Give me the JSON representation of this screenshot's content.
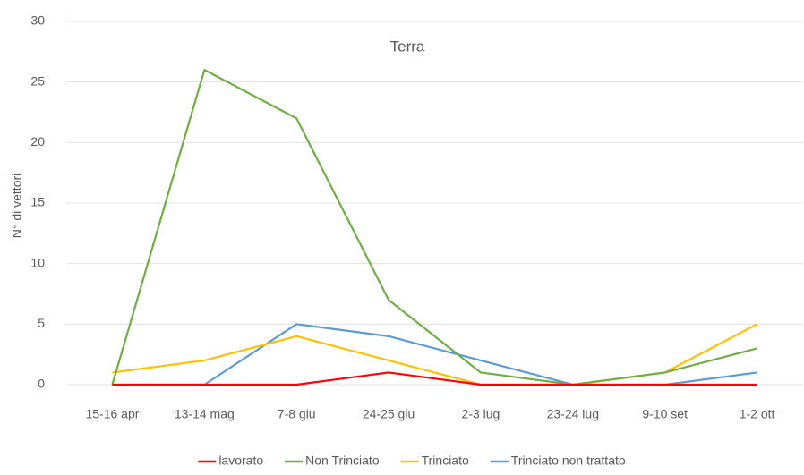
{
  "chart_data": {
    "type": "line",
    "title": "Terra",
    "y_label": "N° di vettori",
    "categories": [
      "15-16 apr",
      "13-14 mag",
      "7-8 giu",
      "24-25 giu",
      "2-3 lug",
      "23-24 lug",
      "9-10 set",
      "1-2 ott"
    ],
    "series": [
      {
        "name": "lavorato",
        "color": "#ff0000",
        "values": [
          0,
          0,
          0,
          1,
          0,
          0,
          0,
          0
        ]
      },
      {
        "name": "Non Trinciato",
        "color": "#70ad47",
        "values": [
          0,
          26,
          22,
          7,
          1,
          0,
          1,
          3
        ]
      },
      {
        "name": "Trinciato",
        "color": "#ffc000",
        "values": [
          1,
          2,
          4,
          2,
          0,
          0,
          1,
          5
        ]
      },
      {
        "name": "Trinciato non trattato",
        "color": "#5b9bd5",
        "values": [
          0,
          0,
          5,
          4,
          2,
          0,
          0,
          1
        ]
      }
    ],
    "ylim": [
      0,
      30
    ],
    "yticks": [
      0,
      5,
      10,
      15,
      20,
      25,
      30
    ],
    "grid": true,
    "legend": "bottom"
  }
}
